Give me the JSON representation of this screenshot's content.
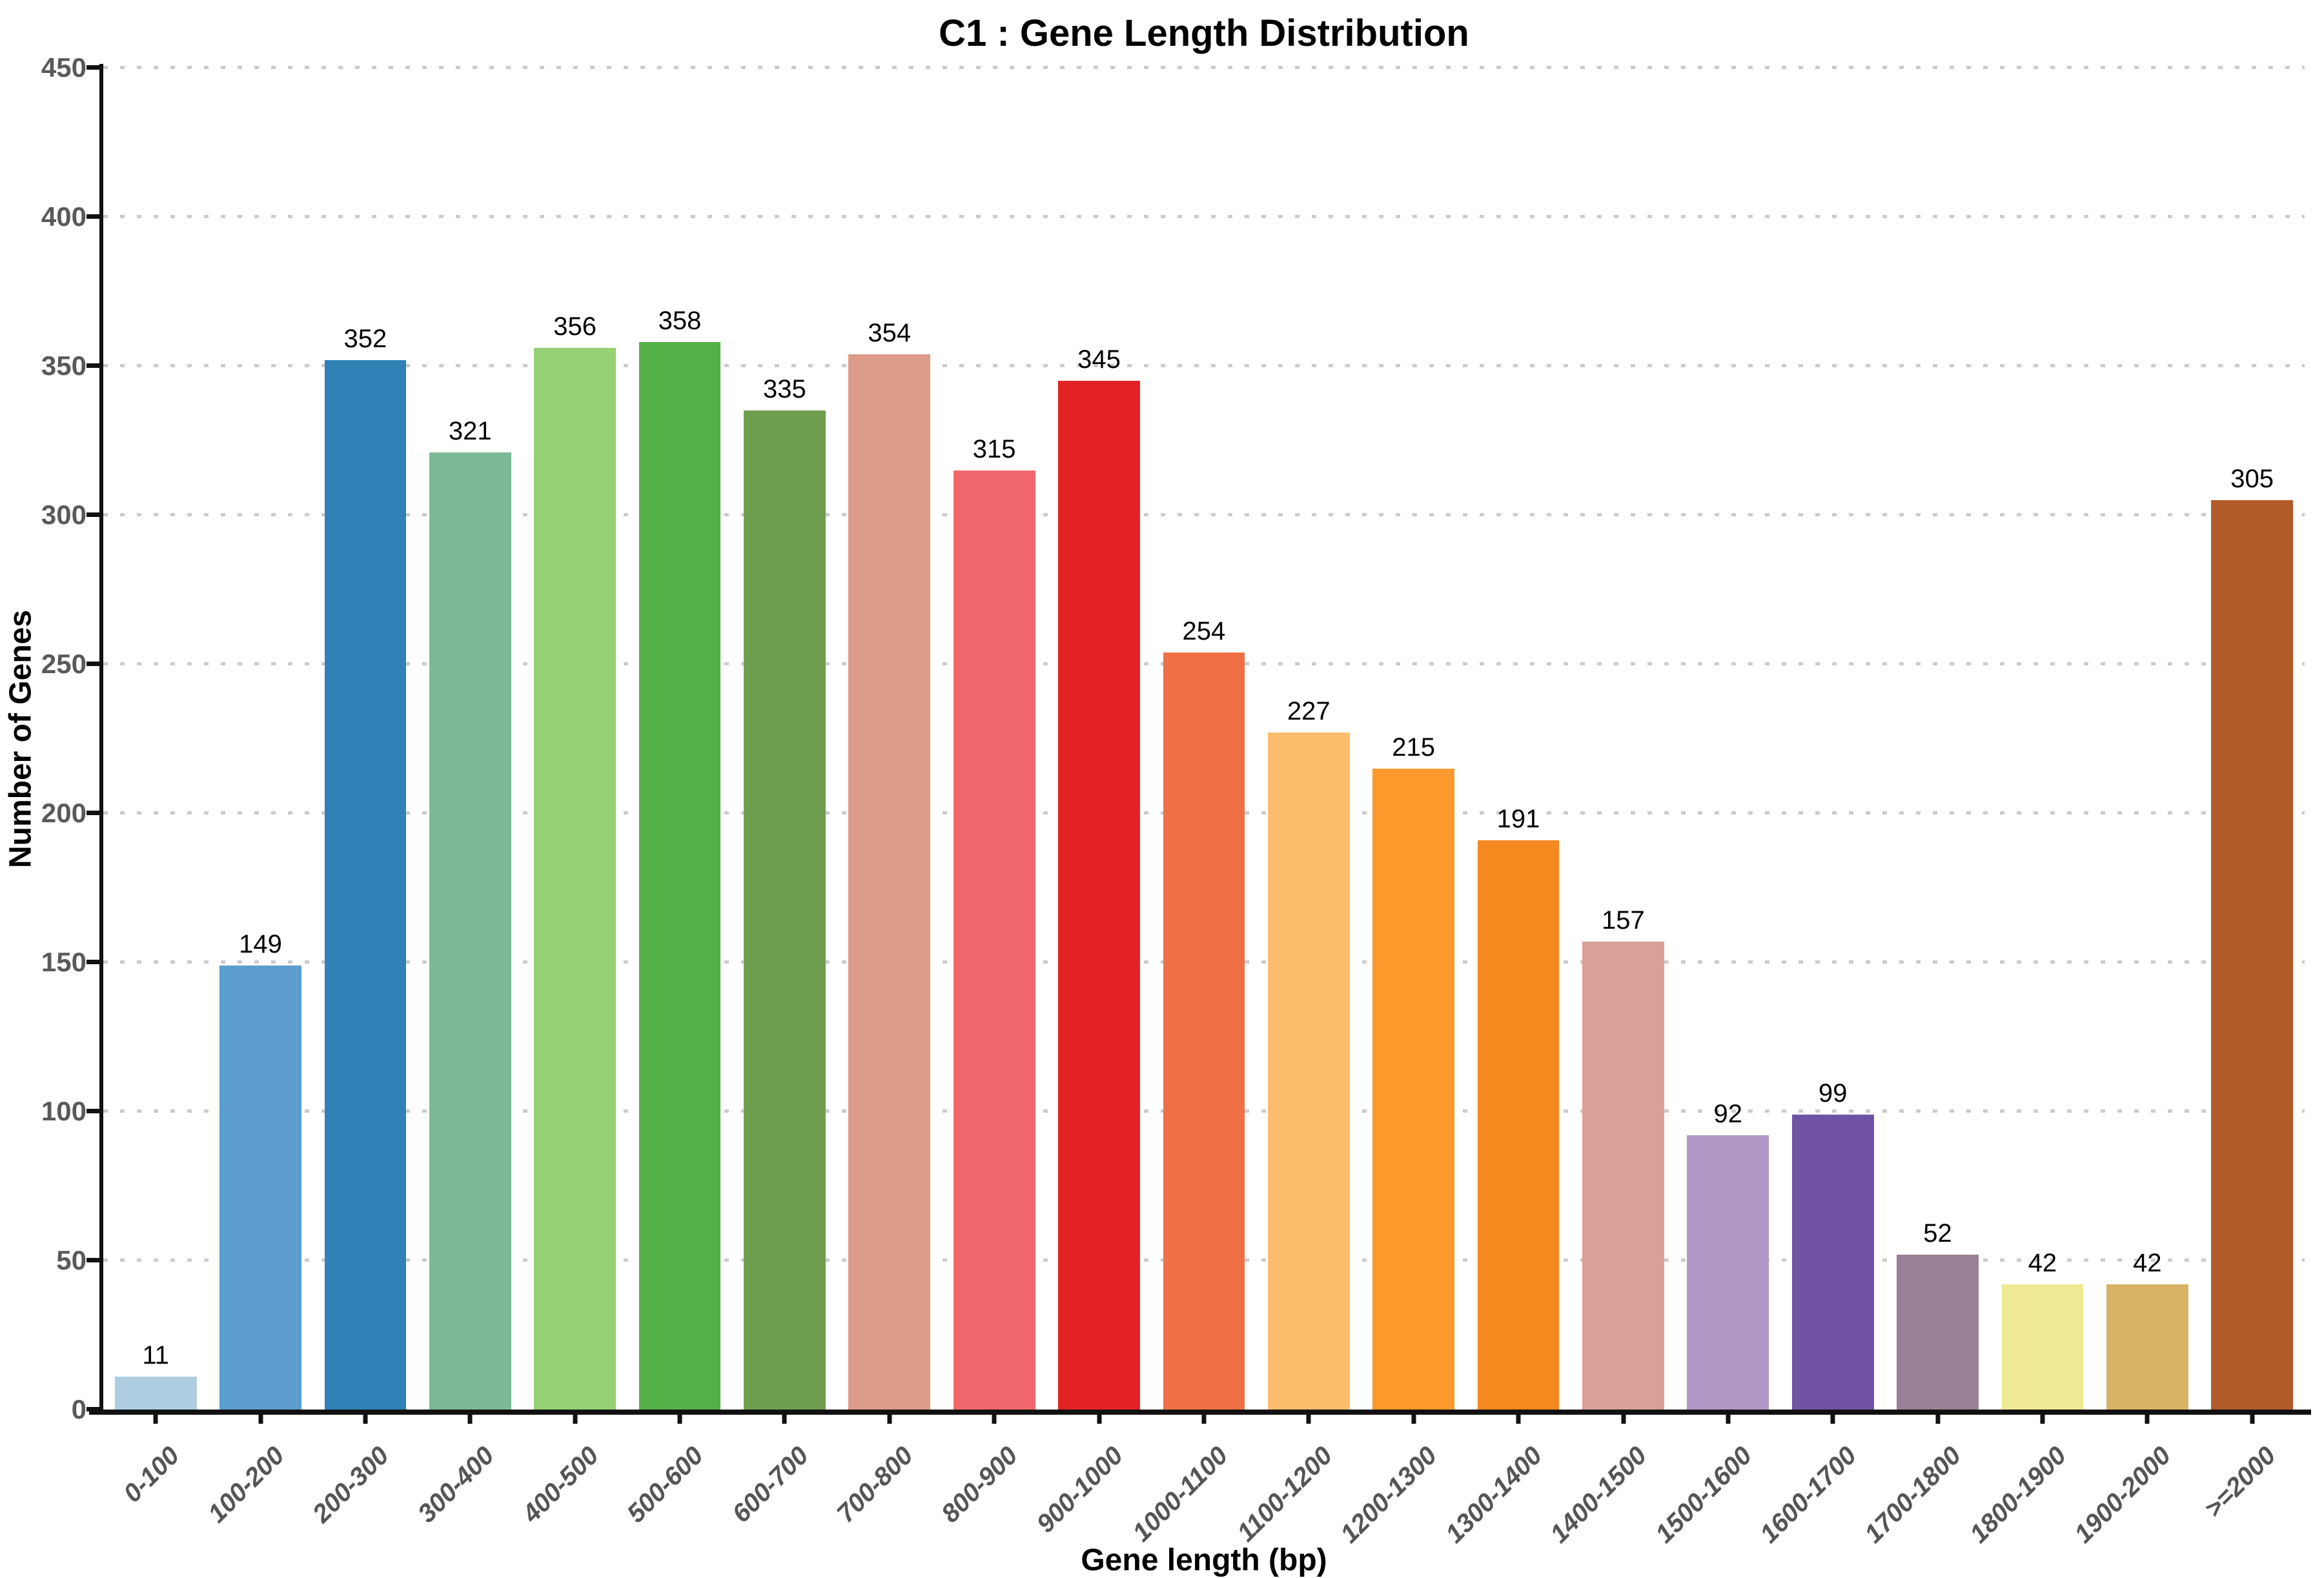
{
  "title": "C1 : Gene Length Distribution",
  "x_axis_title": "Gene length (bp)",
  "y_axis_title": "Number of Genes",
  "colors": {
    "axis": "#111111",
    "tick_label": "#595959",
    "x_tick_label": "#555555",
    "grid": "#cbcbcb",
    "value_label": "#000000",
    "background": "#ffffff"
  },
  "chart_data": {
    "type": "bar",
    "title": "C1 : Gene Length Distribution",
    "xlabel": "Gene length (bp)",
    "ylabel": "Number of Genes",
    "categories": [
      "0-100",
      "100-200",
      "200-300",
      "300-400",
      "400-500",
      "500-600",
      "600-700",
      "700-800",
      "800-900",
      "900-1000",
      "1000-1100",
      "1100-1200",
      "1200-1300",
      "1300-1400",
      "1400-1500",
      "1500-1600",
      "1600-1700",
      "1700-1800",
      "1800-1900",
      "1900-2000",
      ">=2000"
    ],
    "values": [
      11,
      149,
      352,
      321,
      356,
      358,
      335,
      354,
      315,
      345,
      254,
      227,
      215,
      191,
      157,
      92,
      99,
      52,
      42,
      42,
      305
    ],
    "bar_colors": [
      "#aecde1",
      "#5b9dcc",
      "#2f82b6",
      "#7cba97",
      "#97d175",
      "#53b047",
      "#6f9e4f",
      "#dd9b89",
      "#f0686c",
      "#e32226",
      "#f07046",
      "#fcbd6c",
      "#fb992c",
      "#f68820",
      "#d8a096",
      "#b297c7",
      "#7053a3",
      "#9b7f94",
      "#efe894",
      "#d9b365",
      "#b35b29"
    ],
    "value_labels": true,
    "ylim": [
      0,
      450
    ],
    "ytick_step": 50,
    "yticks": [
      0,
      50,
      100,
      150,
      200,
      250,
      300,
      350,
      400,
      450
    ],
    "grid": "horizontal dotted",
    "legend": "none",
    "xtick_rotation_deg": 45
  }
}
